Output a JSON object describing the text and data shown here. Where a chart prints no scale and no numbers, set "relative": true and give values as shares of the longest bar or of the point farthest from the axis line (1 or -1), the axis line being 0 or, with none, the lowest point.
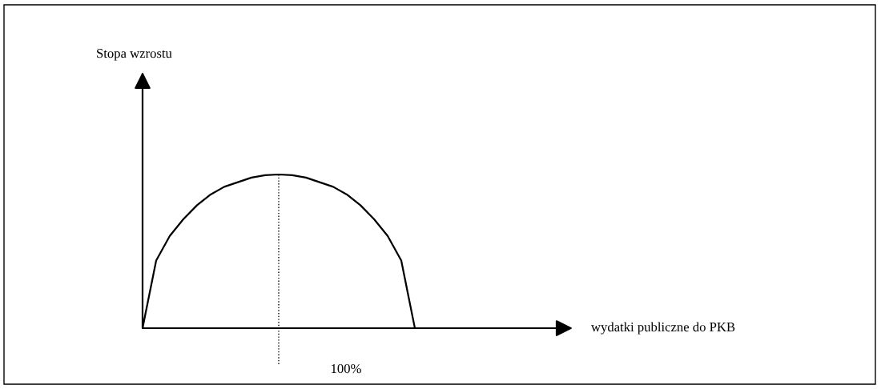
{
  "chart_data": {
    "type": "line",
    "relative": true,
    "categories": [
      null,
      null,
      null,
      null,
      null,
      null,
      null,
      null,
      null,
      null,
      null,
      null,
      null,
      null,
      null,
      null,
      null,
      null,
      null,
      null,
      null
    ],
    "series": [
      {
        "color": "#000000",
        "values": [
          0,
          0.44,
          0.6,
          0.71,
          0.8,
          0.87,
          0.92,
          0.95,
          0.98,
          0.995,
          1,
          0.995,
          0.98,
          0.95,
          0.92,
          0.87,
          0.8,
          0.71,
          0.6,
          0.44,
          0
        ]
      }
    ],
    "annotations": [
      "Stopa wzrostu",
      "wydatki publiczne do PKB",
      "100%"
    ],
    "marker": "none",
    "line_style": "solid",
    "legend": false
  }
}
